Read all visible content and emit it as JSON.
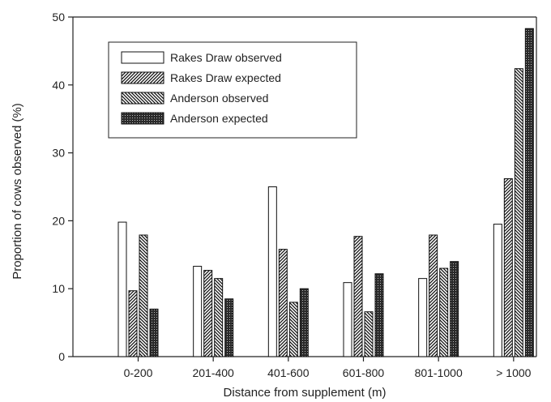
{
  "chart_data": {
    "type": "bar",
    "title": "",
    "xlabel": "Distance from supplement (m)",
    "ylabel": "Proportion of cows observed (%)",
    "ylim": [
      0,
      50
    ],
    "yticks": [
      "0",
      "10",
      "20",
      "30",
      "40",
      "50"
    ],
    "categories": [
      "0-200",
      "201-400",
      "401-600",
      "601-800",
      "801-1000",
      "> 1000"
    ],
    "legend_position": "top-left",
    "grid": false,
    "series": [
      {
        "name": "Rakes Draw observed",
        "pattern": "open",
        "values": [
          19.8,
          13.3,
          25.0,
          10.9,
          11.5,
          19.5
        ]
      },
      {
        "name": "Rakes Draw expected",
        "pattern": "forward-hatch",
        "values": [
          9.7,
          12.7,
          15.8,
          17.7,
          17.9,
          26.2
        ]
      },
      {
        "name": "Anderson observed",
        "pattern": "back-hatch",
        "values": [
          17.9,
          11.5,
          8.0,
          6.6,
          13.0,
          42.4
        ]
      },
      {
        "name": "Anderson expected",
        "pattern": "dots",
        "values": [
          7.0,
          8.5,
          10.0,
          12.2,
          14.0,
          48.3
        ]
      }
    ]
  }
}
